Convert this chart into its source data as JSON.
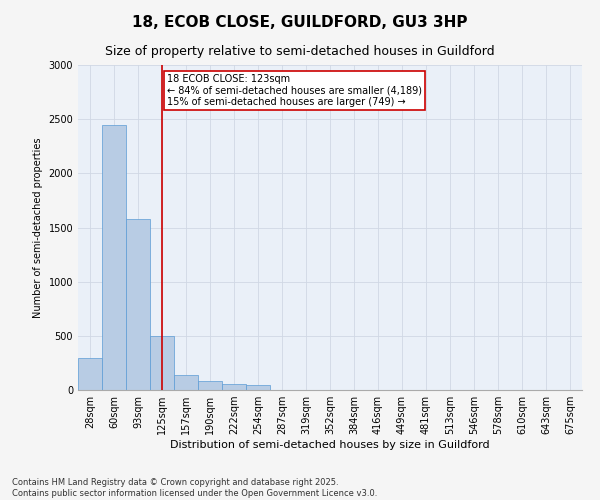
{
  "title": "18, ECOB CLOSE, GUILDFORD, GU3 3HP",
  "subtitle": "Size of property relative to semi-detached houses in Guildford",
  "xlabel": "Distribution of semi-detached houses by size in Guildford",
  "ylabel": "Number of semi-detached properties",
  "bar_color": "#b8cce4",
  "bar_edge_color": "#5b9bd5",
  "grid_color": "#d0d8e4",
  "background_color": "#eaf0f8",
  "fig_background_color": "#f5f5f5",
  "bins": [
    "28sqm",
    "60sqm",
    "93sqm",
    "125sqm",
    "157sqm",
    "190sqm",
    "222sqm",
    "254sqm",
    "287sqm",
    "319sqm",
    "352sqm",
    "384sqm",
    "416sqm",
    "449sqm",
    "481sqm",
    "513sqm",
    "546sqm",
    "578sqm",
    "610sqm",
    "643sqm",
    "675sqm"
  ],
  "values": [
    300,
    2450,
    1580,
    500,
    135,
    80,
    55,
    45,
    0,
    0,
    0,
    0,
    0,
    0,
    0,
    0,
    0,
    0,
    0,
    0,
    0
  ],
  "property_line_x": 3,
  "property_line_color": "#cc0000",
  "annotation_text": "18 ECOB CLOSE: 123sqm\n← 84% of semi-detached houses are smaller (4,189)\n15% of semi-detached houses are larger (749) →",
  "annotation_box_color": "#ffffff",
  "annotation_box_edge_color": "#cc0000",
  "ylim": [
    0,
    3000
  ],
  "yticks": [
    0,
    500,
    1000,
    1500,
    2000,
    2500,
    3000
  ],
  "footnote1": "Contains HM Land Registry data © Crown copyright and database right 2025.",
  "footnote2": "Contains public sector information licensed under the Open Government Licence v3.0.",
  "title_fontsize": 11,
  "subtitle_fontsize": 9,
  "axis_label_fontsize": 8,
  "tick_fontsize": 7,
  "annotation_fontsize": 7,
  "footnote_fontsize": 6,
  "ylabel_fontsize": 7
}
